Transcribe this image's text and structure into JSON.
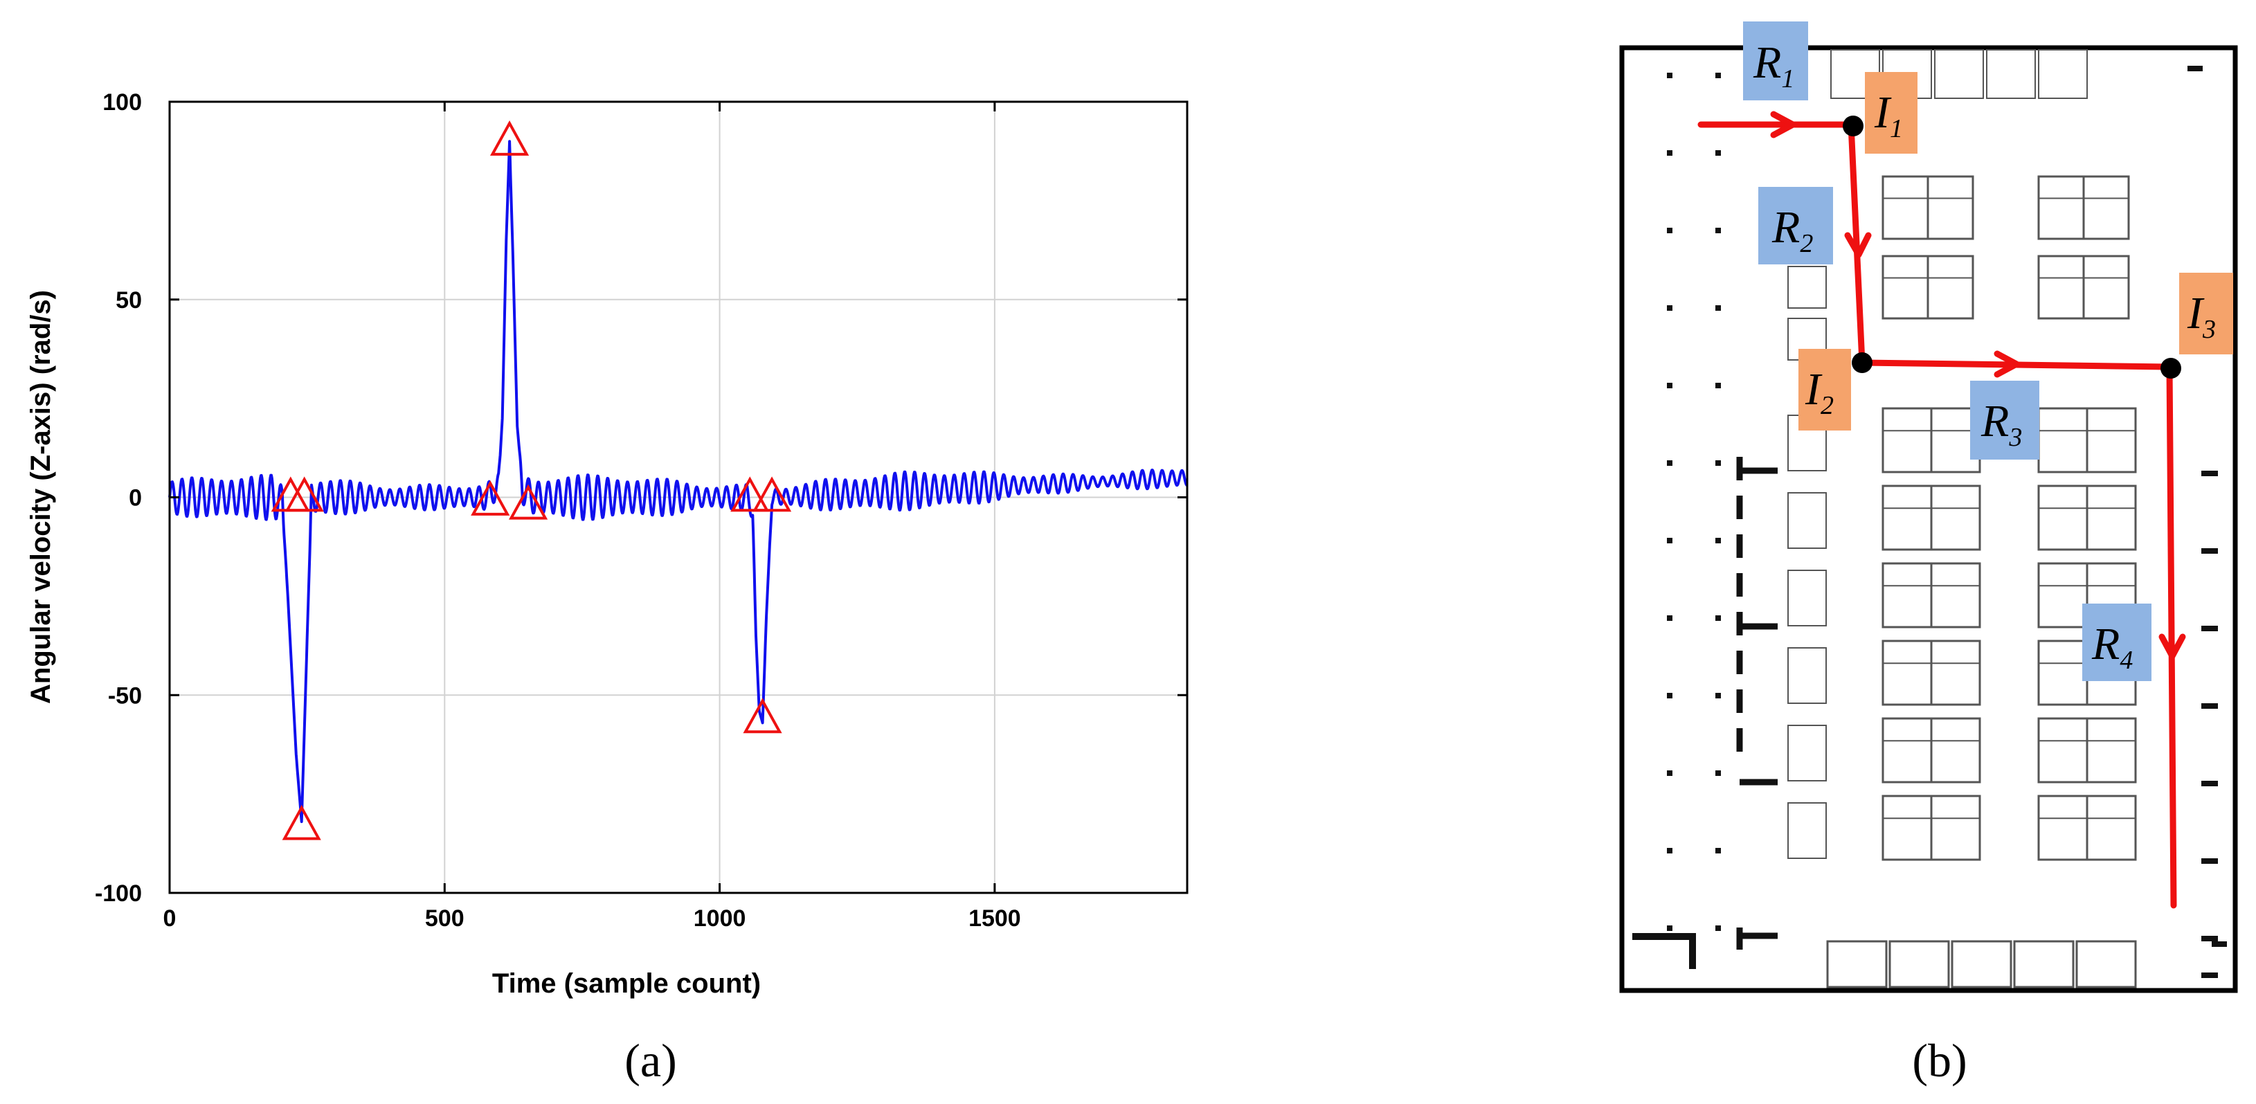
{
  "captions": {
    "a": "(a)",
    "b": "(b)"
  },
  "colors": {
    "signal": "#1010ee",
    "marker": "#ee1111",
    "route": "#ee1111",
    "road_tag": "#8fb4e3",
    "intersection_tag": "#f5a36b"
  },
  "chart_data": {
    "type": "line",
    "title": "",
    "xlabel": "Time (sample count)",
    "ylabel": "Angular velocity (Z-axis) (rad/s)",
    "xlim": [
      0,
      1850
    ],
    "ylim": [
      -100,
      100
    ],
    "xticks": [
      0,
      500,
      1000,
      1500
    ],
    "yticks": [
      100,
      50,
      0,
      -50,
      -100
    ],
    "grid": true,
    "series": [
      {
        "color": "#1010ee",
        "background_oscillation": {
          "amplitude": 5,
          "period_samples": 18
        },
        "x": [
          0,
          195,
          205,
          215,
          230,
          240,
          248,
          258,
          575,
          598,
          605,
          612,
          618,
          624,
          632,
          642,
          660,
          1050,
          1060,
          1066,
          1072,
          1078,
          1085,
          1095,
          1850
        ],
        "y": [
          0,
          0,
          -2,
          -25,
          -65,
          -82,
          -45,
          0,
          0,
          3,
          20,
          65,
          90,
          62,
          18,
          2,
          0,
          0,
          -3,
          -35,
          -54,
          -57,
          -30,
          0,
          5
        ]
      }
    ],
    "markers": {
      "shape": "triangle",
      "color": "#ee1111",
      "points": [
        {
          "x": 220,
          "y": 0
        },
        {
          "x": 245,
          "y": 0
        },
        {
          "x": 240,
          "y": -83
        },
        {
          "x": 618,
          "y": 90
        },
        {
          "x": 583,
          "y": -1
        },
        {
          "x": 652,
          "y": -2
        },
        {
          "x": 1055,
          "y": 0
        },
        {
          "x": 1095,
          "y": 0
        },
        {
          "x": 1078,
          "y": -56
        }
      ]
    }
  },
  "floor_plan": {
    "labels": {
      "R1": {
        "main": "R",
        "sub": "1"
      },
      "R2": {
        "main": "R",
        "sub": "2"
      },
      "R3": {
        "main": "R",
        "sub": "3"
      },
      "R4": {
        "main": "R",
        "sub": "4"
      },
      "I1": {
        "main": "I",
        "sub": "1"
      },
      "I2": {
        "main": "I",
        "sub": "2"
      },
      "I3": {
        "main": "I",
        "sub": "3"
      }
    }
  }
}
